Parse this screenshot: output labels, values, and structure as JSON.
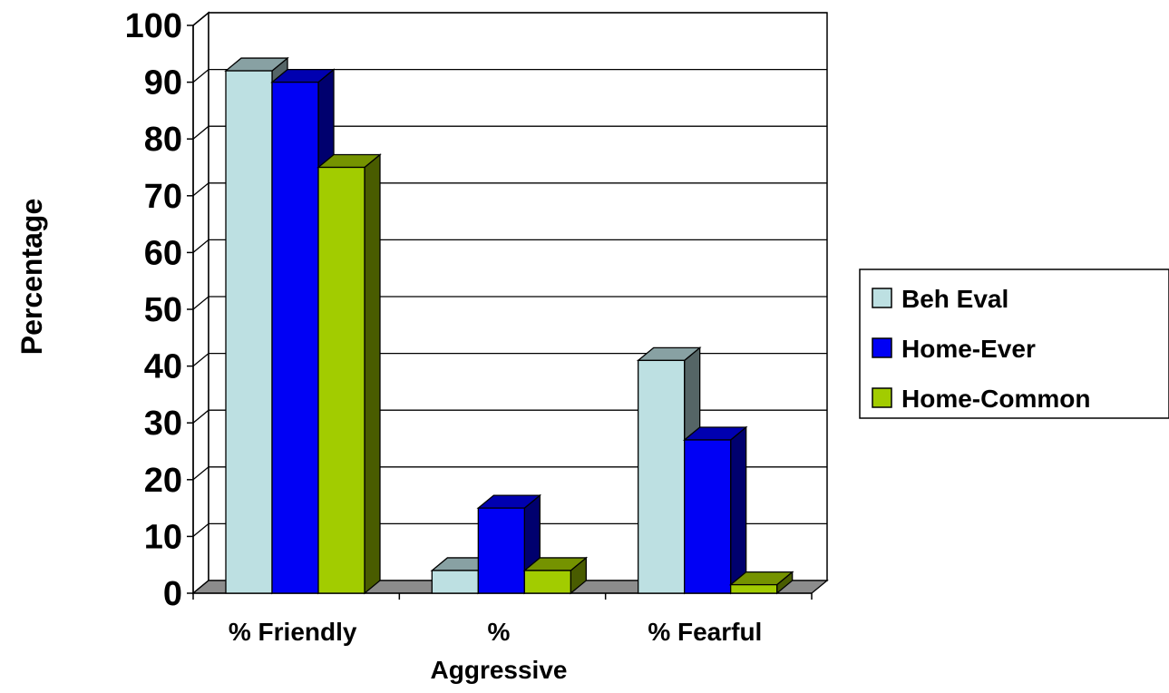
{
  "chart_data": {
    "type": "bar",
    "style": "3d-clustered-column",
    "title": "",
    "xlabel": "",
    "ylabel": "Percentage",
    "ylim": [
      0,
      100
    ],
    "yticks": [
      0,
      10,
      20,
      30,
      40,
      50,
      60,
      70,
      80,
      90,
      100
    ],
    "grid": true,
    "legend_position": "right",
    "categories": [
      [
        "% Friendly"
      ],
      [
        "%",
        "Aggressive"
      ],
      [
        "% Fearful"
      ]
    ],
    "series": [
      {
        "name": "Beh Eval",
        "values": [
          92,
          4,
          41
        ],
        "color": "#BDE0E2"
      },
      {
        "name": "Home-Ever",
        "values": [
          90,
          15,
          27
        ],
        "color": "#0000F5"
      },
      {
        "name": "Home-Common",
        "values": [
          75,
          4,
          1.5
        ],
        "color": "#A2CC00"
      }
    ]
  }
}
